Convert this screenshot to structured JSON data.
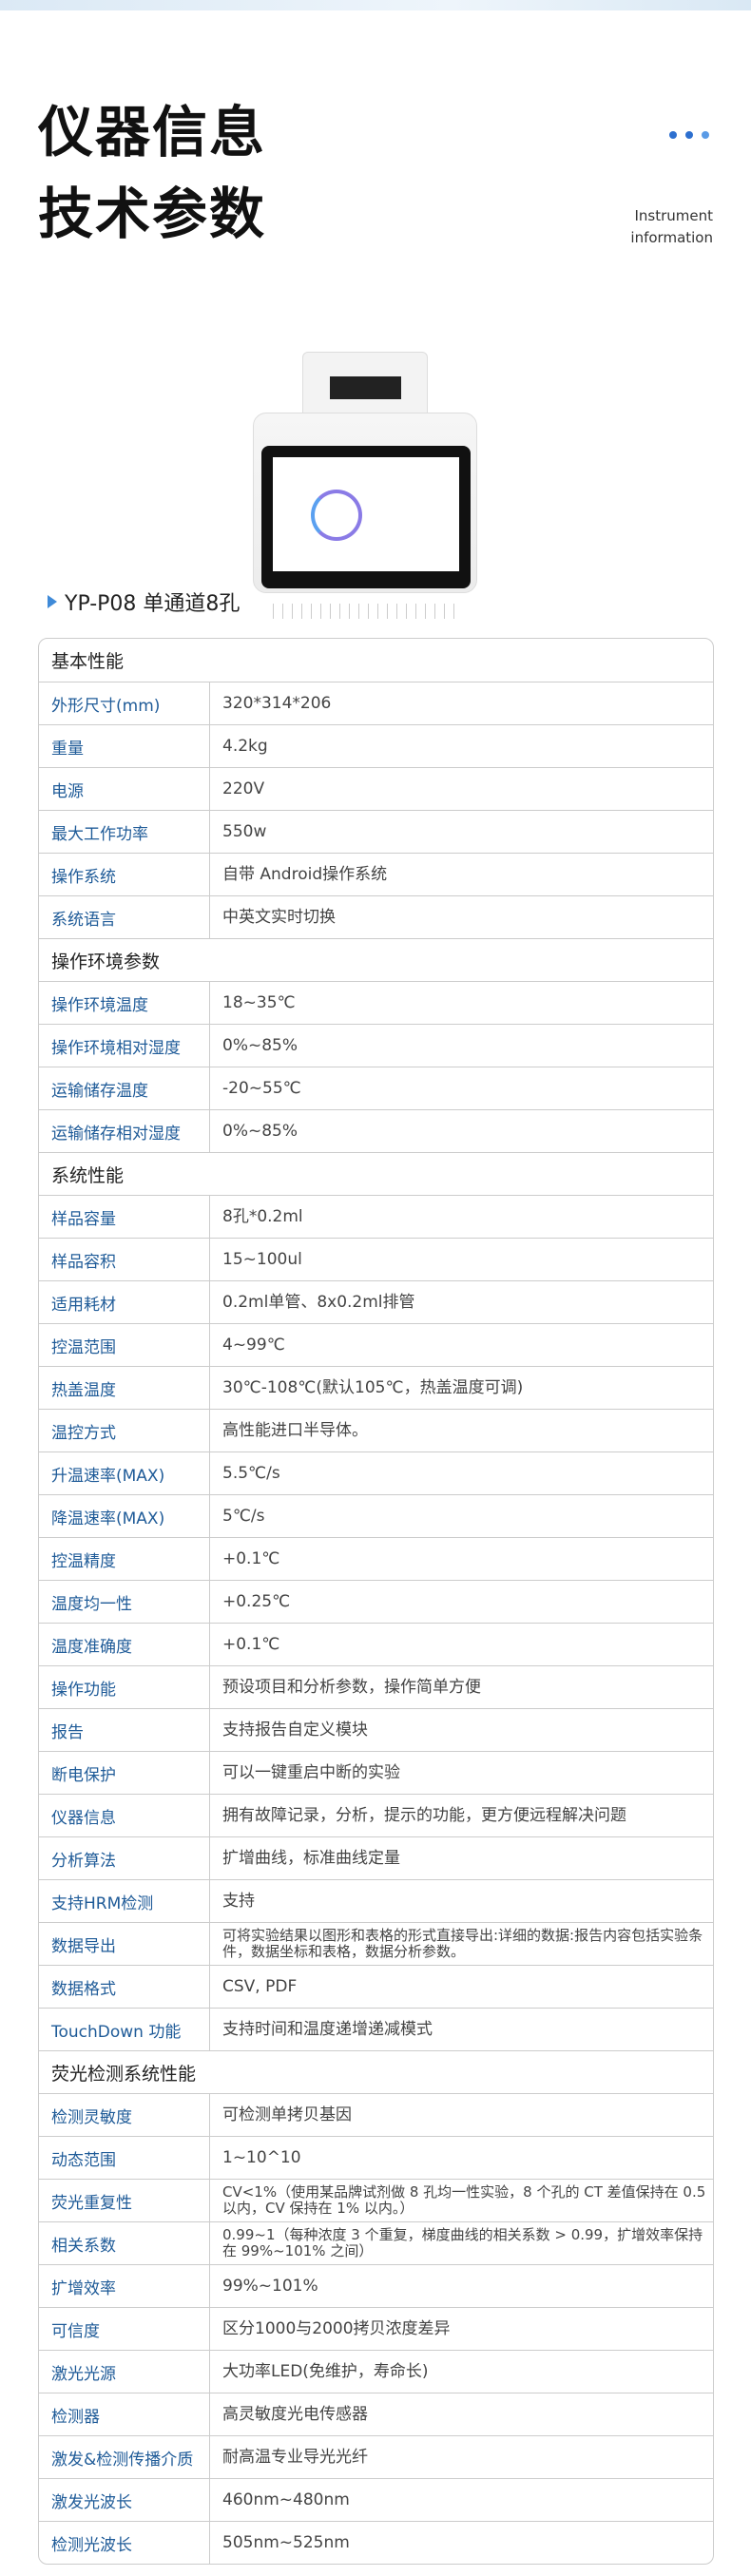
{
  "header": {
    "title_line1": "仪器信息",
    "title_line2": "技术参数",
    "subtitle_line1": "Instrument",
    "subtitle_line2": "information",
    "accent": "#2d6fcf"
  },
  "product": {
    "model": "YP-P08 单通道8孔"
  },
  "sections": [
    {
      "title": "基本性能",
      "rows": [
        [
          "外形尺寸(mm)",
          "320*314*206"
        ],
        [
          "重量",
          "4.2kg"
        ],
        [
          "电源",
          "220V"
        ],
        [
          "最大工作功率",
          "550w"
        ],
        [
          "操作系统",
          "自带 Android操作系统"
        ],
        [
          "系统语言",
          "中英文实时切换"
        ]
      ]
    },
    {
      "title": "操作环境参数",
      "rows": [
        [
          "操作环境温度",
          "18~35℃"
        ],
        [
          "操作环境相对湿度",
          "0%~85%"
        ],
        [
          "运输储存温度",
          "-20~55℃"
        ],
        [
          "运输储存相对湿度",
          "0%~85%"
        ]
      ]
    },
    {
      "title": "系统性能",
      "rows": [
        [
          "样品容量",
          "8孔*0.2ml"
        ],
        [
          "样品容积",
          "15~100ul"
        ],
        [
          "适用耗材",
          "0.2ml单管、8x0.2ml排管"
        ],
        [
          "控温范围",
          "4~99℃"
        ],
        [
          "热盖温度",
          "30℃-108℃(默认105℃，热盖温度可调)"
        ],
        [
          "温控方式",
          "高性能进口半导体。"
        ],
        [
          "升温速率(MAX)",
          "5.5℃/s"
        ],
        [
          "降温速率(MAX)",
          "5℃/s"
        ],
        [
          "控温精度",
          "+0.1℃"
        ],
        [
          "温度均一性",
          "+0.25℃"
        ],
        [
          "温度准确度",
          "+0.1℃"
        ],
        [
          "操作功能",
          "预设项目和分析参数，操作简单方便"
        ],
        [
          "报告",
          "支持报告自定义模块"
        ],
        [
          "断电保护",
          "可以一键重启中断的实验"
        ],
        [
          "仪器信息",
          "拥有故障记录，分析，提示的功能，更方便远程解决问题"
        ],
        [
          "分析算法",
          "扩增曲线，标准曲线定量"
        ],
        [
          "支持HRM检测",
          "支持"
        ],
        [
          "数据导出",
          "可将实验结果以图形和表格的形式直接导出:详细的数据:报告内容包括实验条件，数据坐标和表格，数据分析参数。"
        ],
        [
          "数据格式",
          "CSV, PDF"
        ],
        [
          "TouchDown 功能",
          "支持时间和温度递增递减模式"
        ]
      ]
    },
    {
      "title": "荧光检测系统性能",
      "rows": [
        [
          "检测灵敏度",
          "可检测单拷贝基因"
        ],
        [
          "动态范围",
          "1~10^10"
        ],
        [
          "荧光重复性",
          "CV<1%（使用某品牌试剂做 8 孔均一性实验，8 个孔的 CT 差值保持在 0.5 以内，CV 保持在 1% 以内。）"
        ],
        [
          "相关系数",
          "0.99~1（每种浓度 3 个重复，梯度曲线的相关系数 > 0.99，扩增效率保持在 99%~101% 之间）"
        ],
        [
          "扩增效率",
          "99%~101%"
        ],
        [
          "可信度",
          "区分1000与2000拷贝浓度差异"
        ],
        [
          "激光光源",
          "大功率LED(免维护，寿命长)"
        ],
        [
          "检测器",
          "高灵敏度光电传感器"
        ],
        [
          "激发&检测传播介质",
          "耐高温专业导光光纤"
        ],
        [
          "激发光波长",
          "460nm~480nm"
        ],
        [
          "检测光波长",
          "505nm~525nm"
        ]
      ]
    }
  ]
}
